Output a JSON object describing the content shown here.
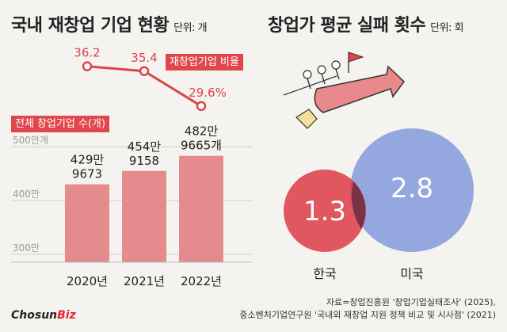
{
  "left_panel": {
    "title": "국내 재창업 기업 현황",
    "unit": "단위: 개",
    "ratio_tag": "재창업기업 비율",
    "count_tag": "전체 창업기업 수(개)"
  },
  "right_panel": {
    "title": "창업가 평균 실패 횟수",
    "unit": "단위: 회"
  },
  "chart_data": [
    {
      "type": "bar",
      "categories": [
        "2020년",
        "2021년",
        "2022년"
      ],
      "series": [
        {
          "name": "전체 창업기업 수(개)",
          "values": [
            4299673,
            4549158,
            4829665
          ]
        }
      ],
      "bar_labels": [
        [
          "429만",
          "9673"
        ],
        [
          "454만",
          "9158"
        ],
        [
          "482만",
          "9665개"
        ]
      ],
      "y_ticks": [
        "500만개",
        "400만",
        "300만"
      ],
      "ylim": [
        2850000,
        5150000
      ],
      "line_overlay": {
        "name": "재창업기업 비율",
        "values": [
          36.2,
          35.4,
          29.6
        ],
        "labels": [
          "36.2",
          "35.4",
          "29.6%"
        ],
        "ylim": [
          28,
          38
        ],
        "color": "#d9454a"
      },
      "bar_color": "#e58b8e",
      "grid": true
    },
    {
      "type": "venn",
      "categories": [
        "한국",
        "미국"
      ],
      "values": [
        1.3,
        2.8
      ],
      "value_labels": [
        "1.3",
        "2.8"
      ],
      "colors": [
        "#dc3b45",
        "#8a9fdb"
      ]
    }
  ],
  "source": {
    "line1": "자료=창업진흥원 '창업기업실태조사' (2025),",
    "line2": "중소벤처기업연구원 '국내외 재창업 지원 정책 비교 및 시사점' (2021)"
  },
  "logo": {
    "main": "Chosun",
    "accent": "Biz",
    "accent_color": "#e3262e"
  }
}
